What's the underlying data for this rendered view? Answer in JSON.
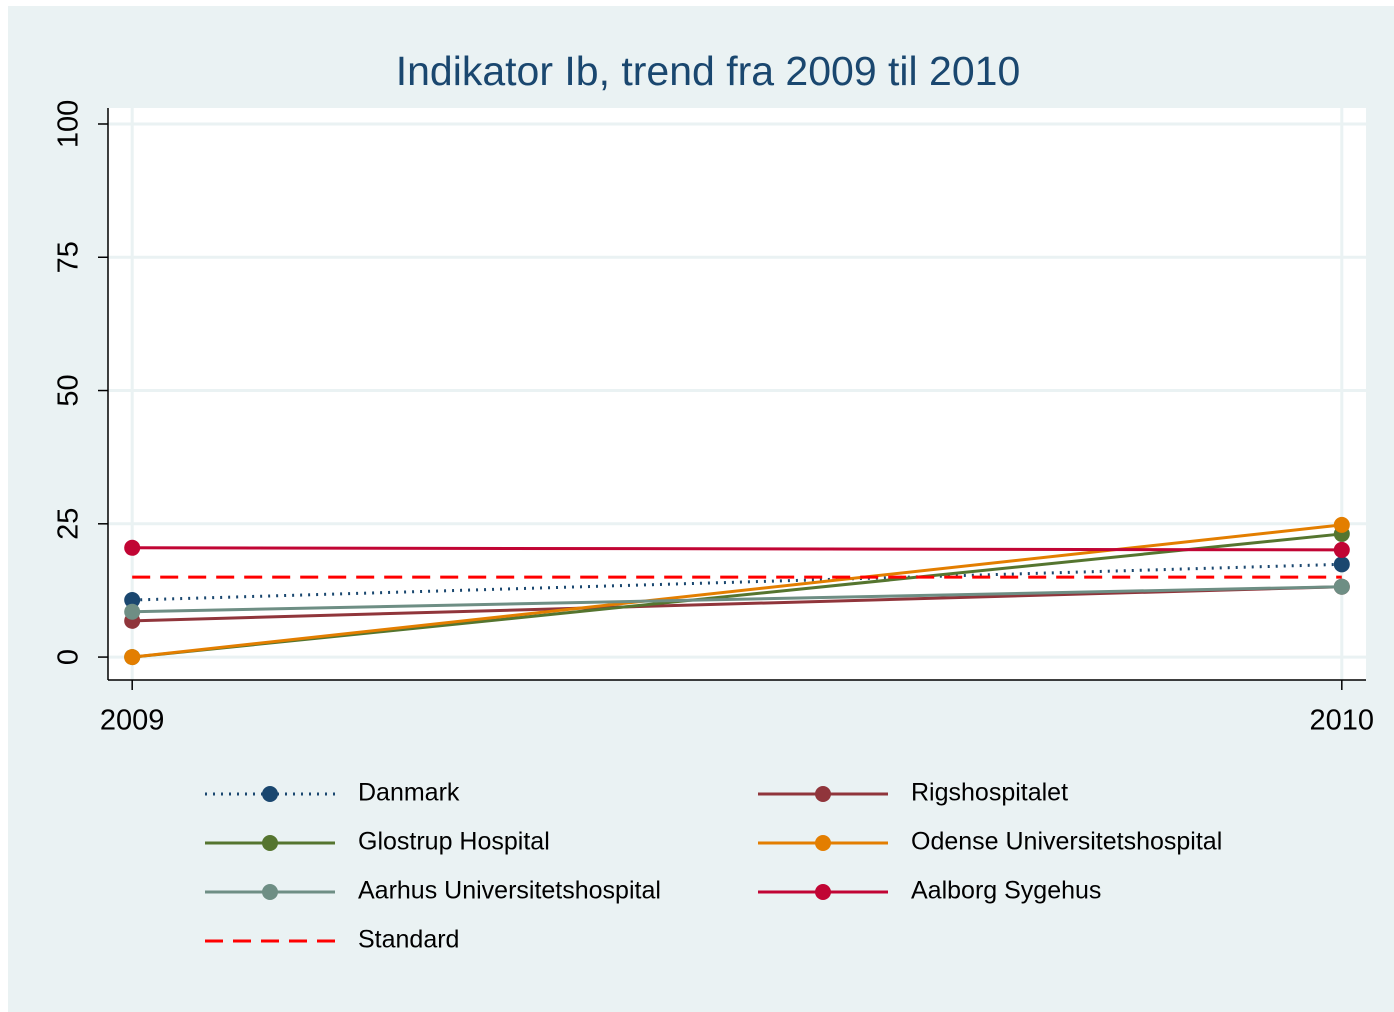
{
  "chart_data": {
    "type": "line",
    "title": "Indikator Ib, trend fra 2009 til 2010",
    "x": [
      2009,
      2010
    ],
    "xlim": [
      2008.98,
      2010.02
    ],
    "xticks": [
      2009,
      2010
    ],
    "ylim": [
      -4.3,
      103
    ],
    "yticks": [
      0,
      25,
      50,
      75,
      100
    ],
    "grid": true,
    "series": [
      {
        "name": "Danmark",
        "color": "#1a476f",
        "line_style": "dotted",
        "marker": true,
        "values": [
          10.7,
          17.4
        ]
      },
      {
        "name": "Rigshospitalet",
        "color": "#90353b",
        "line_style": "solid",
        "marker": true,
        "values": [
          6.8,
          13.2
        ]
      },
      {
        "name": "Glostrup Hospital",
        "color": "#55752f",
        "line_style": "solid",
        "marker": true,
        "values": [
          0,
          23.1
        ]
      },
      {
        "name": "Odense Universitetshospital",
        "color": "#e37e00",
        "line_style": "solid",
        "marker": true,
        "values": [
          0,
          24.8
        ]
      },
      {
        "name": "Aarhus Universitetshospital",
        "color": "#6e8e84",
        "line_style": "solid",
        "marker": true,
        "values": [
          8.5,
          13.2
        ]
      },
      {
        "name": "Aalborg Sygehus",
        "color": "#c10534",
        "line_style": "solid",
        "marker": true,
        "values": [
          20.5,
          20.1
        ]
      },
      {
        "name": "Standard",
        "color": "#ff0000",
        "line_style": "dashed",
        "marker": false,
        "values": [
          15,
          15
        ]
      }
    ]
  }
}
